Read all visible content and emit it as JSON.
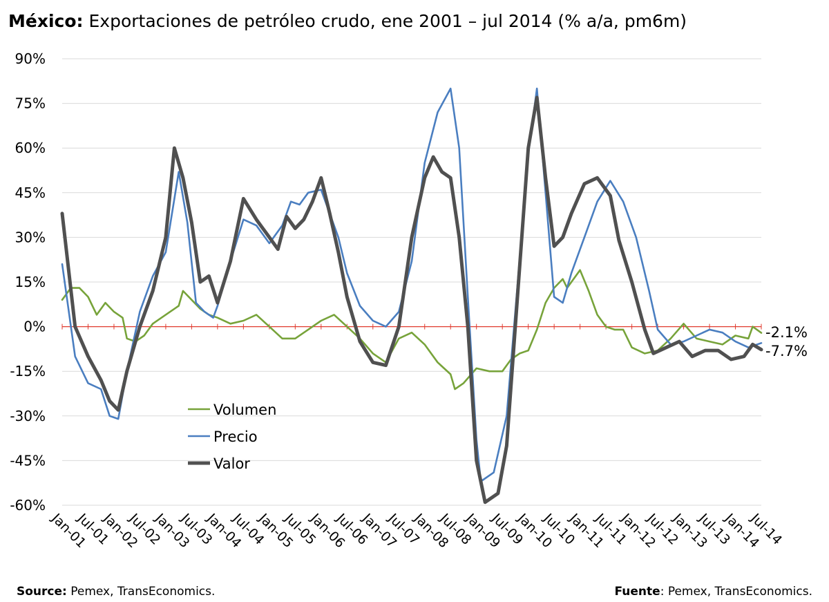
{
  "title": {
    "bold": "México:",
    "rest": " Exportaciones de petróleo crudo, ene 2001 – jul 2014 (% a/a, pm6m)"
  },
  "footer": {
    "left_bold": "Source:",
    "left_text": " Pemex, TransEconomics.",
    "right_bold": "Fuente",
    "right_text": ": Pemex, TransEconomics."
  },
  "colors": {
    "volumen": "#77A33A",
    "precio": "#4A7EC0",
    "valor": "#505050",
    "zero_line": "#E03A2E",
    "grid": "#D9D9D9"
  },
  "chart_data": {
    "type": "line",
    "title": "Exportaciones de petróleo crudo, ene 2001 – jul 2014 (% a/a, pm6m)",
    "xlabel": "",
    "ylabel": "",
    "ylim": [
      -60,
      90
    ],
    "yticks": [
      90,
      75,
      60,
      45,
      30,
      15,
      0,
      -15,
      -30,
      -45,
      -60
    ],
    "ytick_labels": [
      "90%",
      "75%",
      "60%",
      "45%",
      "30%",
      "15%",
      "0%",
      "-15%",
      "-30%",
      "-45%",
      "-60%"
    ],
    "xtick_labels": [
      "Jan-01",
      "Jul-01",
      "Jan-02",
      "Jul-02",
      "Jan-03",
      "Jul-03",
      "Jan-04",
      "Jul-04",
      "Jan-05",
      "Jul-05",
      "Jan-06",
      "Jul-06",
      "Jan-07",
      "Jul-07",
      "Jan-08",
      "Jul-08",
      "Jan-09",
      "Jul-09",
      "Jan-10",
      "Jul-10",
      "Jan-11",
      "Jul-11",
      "Jan-12",
      "Jul-12",
      "Jan-13",
      "Jul-13",
      "Jan-14",
      "Jul-14"
    ],
    "grid": true,
    "legend_position": "lower-left",
    "end_labels": [
      "-2.1%",
      "-7.7%"
    ],
    "series": [
      {
        "name": "Volumen",
        "key": "volumen",
        "points": [
          [
            "2001-01",
            9
          ],
          [
            "2001-03",
            13
          ],
          [
            "2001-05",
            13
          ],
          [
            "2001-07",
            10
          ],
          [
            "2001-09",
            4
          ],
          [
            "2001-11",
            8
          ],
          [
            "2002-01",
            5
          ],
          [
            "2002-03",
            3
          ],
          [
            "2002-04",
            -4
          ],
          [
            "2002-06",
            -5
          ],
          [
            "2002-08",
            -3
          ],
          [
            "2002-10",
            1
          ],
          [
            "2002-12",
            3
          ],
          [
            "2003-02",
            5
          ],
          [
            "2003-04",
            7
          ],
          [
            "2003-05",
            12
          ],
          [
            "2003-07",
            9
          ],
          [
            "2003-09",
            6
          ],
          [
            "2003-11",
            4
          ],
          [
            "2004-01",
            3
          ],
          [
            "2004-04",
            1
          ],
          [
            "2004-07",
            2
          ],
          [
            "2004-10",
            4
          ],
          [
            "2005-01",
            0
          ],
          [
            "2005-04",
            -4
          ],
          [
            "2005-07",
            -4
          ],
          [
            "2005-10",
            -1
          ],
          [
            "2006-01",
            2
          ],
          [
            "2006-04",
            4
          ],
          [
            "2006-07",
            0
          ],
          [
            "2006-10",
            -4
          ],
          [
            "2007-01",
            -9
          ],
          [
            "2007-04",
            -12
          ],
          [
            "2007-07",
            -4
          ],
          [
            "2007-10",
            -2
          ],
          [
            "2008-01",
            -6
          ],
          [
            "2008-04",
            -12
          ],
          [
            "2008-07",
            -16
          ],
          [
            "2008-08",
            -21
          ],
          [
            "2008-10",
            -19
          ],
          [
            "2009-01",
            -14
          ],
          [
            "2009-04",
            -15
          ],
          [
            "2009-07",
            -15
          ],
          [
            "2009-09",
            -11
          ],
          [
            "2009-11",
            -9
          ],
          [
            "2010-01",
            -8
          ],
          [
            "2010-03",
            -1
          ],
          [
            "2010-05",
            8
          ],
          [
            "2010-07",
            13
          ],
          [
            "2010-09",
            16
          ],
          [
            "2010-10",
            13
          ],
          [
            "2011-01",
            19
          ],
          [
            "2011-03",
            12
          ],
          [
            "2011-05",
            4
          ],
          [
            "2011-07",
            0
          ],
          [
            "2011-09",
            -1
          ],
          [
            "2011-11",
            -1
          ],
          [
            "2012-01",
            -7
          ],
          [
            "2012-04",
            -9
          ],
          [
            "2012-07",
            -8
          ],
          [
            "2012-10",
            -4
          ],
          [
            "2013-01",
            1
          ],
          [
            "2013-04",
            -4
          ],
          [
            "2013-07",
            -5
          ],
          [
            "2013-10",
            -6
          ],
          [
            "2014-01",
            -3
          ],
          [
            "2014-04",
            -4
          ],
          [
            "2014-05",
            0
          ],
          [
            "2014-07",
            -2.1
          ]
        ]
      },
      {
        "name": "Precio",
        "key": "precio",
        "points": [
          [
            "2001-01",
            21
          ],
          [
            "2001-04",
            -10
          ],
          [
            "2001-07",
            -19
          ],
          [
            "2001-10",
            -21
          ],
          [
            "2001-12",
            -30
          ],
          [
            "2002-02",
            -31
          ],
          [
            "2002-04",
            -15
          ],
          [
            "2002-07",
            5
          ],
          [
            "2002-10",
            17
          ],
          [
            "2003-01",
            25
          ],
          [
            "2003-04",
            52
          ],
          [
            "2003-06",
            35
          ],
          [
            "2003-08",
            8
          ],
          [
            "2003-10",
            5
          ],
          [
            "2003-12",
            3
          ],
          [
            "2004-01",
            7
          ],
          [
            "2004-04",
            22
          ],
          [
            "2004-07",
            36
          ],
          [
            "2004-10",
            34
          ],
          [
            "2005-01",
            28
          ],
          [
            "2005-04",
            34
          ],
          [
            "2005-06",
            42
          ],
          [
            "2005-08",
            41
          ],
          [
            "2005-10",
            45
          ],
          [
            "2006-01",
            46
          ],
          [
            "2006-03",
            38
          ],
          [
            "2006-05",
            30
          ],
          [
            "2006-07",
            18
          ],
          [
            "2006-10",
            7
          ],
          [
            "2007-01",
            2
          ],
          [
            "2007-04",
            0
          ],
          [
            "2007-07",
            5
          ],
          [
            "2007-10",
            22
          ],
          [
            "2008-01",
            55
          ],
          [
            "2008-04",
            72
          ],
          [
            "2008-07",
            80
          ],
          [
            "2008-09",
            60
          ],
          [
            "2008-11",
            10
          ],
          [
            "2009-01",
            -38
          ],
          [
            "2009-02",
            -52
          ],
          [
            "2009-05",
            -49
          ],
          [
            "2009-08",
            -30
          ],
          [
            "2009-10",
            5
          ],
          [
            "2010-01",
            58
          ],
          [
            "2010-03",
            80
          ],
          [
            "2010-05",
            45
          ],
          [
            "2010-07",
            10
          ],
          [
            "2010-09",
            8
          ],
          [
            "2010-11",
            18
          ],
          [
            "2011-02",
            30
          ],
          [
            "2011-05",
            42
          ],
          [
            "2011-08",
            49
          ],
          [
            "2011-11",
            42
          ],
          [
            "2012-02",
            30
          ],
          [
            "2012-05",
            12
          ],
          [
            "2012-07",
            -1
          ],
          [
            "2012-10",
            -6
          ],
          [
            "2013-01",
            -5
          ],
          [
            "2013-04",
            -3
          ],
          [
            "2013-07",
            -1
          ],
          [
            "2013-10",
            -2
          ],
          [
            "2014-01",
            -5
          ],
          [
            "2014-04",
            -7
          ],
          [
            "2014-07",
            -5.5
          ]
        ]
      },
      {
        "name": "Valor",
        "key": "valor",
        "points": [
          [
            "2001-01",
            38
          ],
          [
            "2001-04",
            0
          ],
          [
            "2001-07",
            -10
          ],
          [
            "2001-10",
            -18
          ],
          [
            "2001-12",
            -25
          ],
          [
            "2002-02",
            -28
          ],
          [
            "2002-04",
            -15
          ],
          [
            "2002-07",
            0
          ],
          [
            "2002-10",
            12
          ],
          [
            "2003-01",
            30
          ],
          [
            "2003-03",
            60
          ],
          [
            "2003-05",
            50
          ],
          [
            "2003-07",
            35
          ],
          [
            "2003-09",
            15
          ],
          [
            "2003-11",
            17
          ],
          [
            "2004-01",
            8
          ],
          [
            "2004-04",
            22
          ],
          [
            "2004-07",
            43
          ],
          [
            "2004-10",
            36
          ],
          [
            "2005-01",
            30
          ],
          [
            "2005-03",
            26
          ],
          [
            "2005-05",
            37
          ],
          [
            "2005-07",
            33
          ],
          [
            "2005-09",
            36
          ],
          [
            "2005-11",
            42
          ],
          [
            "2006-01",
            50
          ],
          [
            "2006-03",
            38
          ],
          [
            "2006-05",
            25
          ],
          [
            "2006-07",
            10
          ],
          [
            "2006-10",
            -5
          ],
          [
            "2007-01",
            -12
          ],
          [
            "2007-04",
            -13
          ],
          [
            "2007-07",
            0
          ],
          [
            "2007-10",
            30
          ],
          [
            "2008-01",
            50
          ],
          [
            "2008-03",
            57
          ],
          [
            "2008-05",
            52
          ],
          [
            "2008-07",
            50
          ],
          [
            "2008-09",
            30
          ],
          [
            "2008-11",
            0
          ],
          [
            "2009-01",
            -45
          ],
          [
            "2009-03",
            -59
          ],
          [
            "2009-06",
            -56
          ],
          [
            "2009-08",
            -40
          ],
          [
            "2009-10",
            0
          ],
          [
            "2010-01",
            60
          ],
          [
            "2010-03",
            77
          ],
          [
            "2010-05",
            50
          ],
          [
            "2010-07",
            27
          ],
          [
            "2010-09",
            30
          ],
          [
            "2010-11",
            38
          ],
          [
            "2011-02",
            48
          ],
          [
            "2011-05",
            50
          ],
          [
            "2011-08",
            44
          ],
          [
            "2011-10",
            29
          ],
          [
            "2012-01",
            15
          ],
          [
            "2012-04",
            -1
          ],
          [
            "2012-06",
            -9
          ],
          [
            "2012-09",
            -7
          ],
          [
            "2012-12",
            -5
          ],
          [
            "2013-03",
            -10
          ],
          [
            "2013-06",
            -8
          ],
          [
            "2013-09",
            -8
          ],
          [
            "2013-12",
            -11
          ],
          [
            "2014-03",
            -10
          ],
          [
            "2014-05",
            -6
          ],
          [
            "2014-07",
            -7.7
          ]
        ]
      }
    ]
  }
}
